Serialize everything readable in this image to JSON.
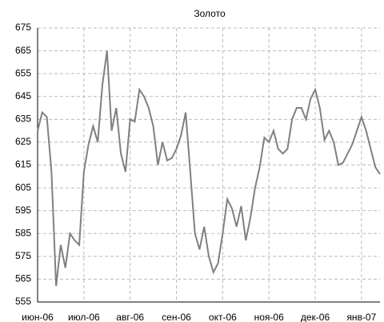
{
  "chart_data": {
    "type": "line",
    "title": "Золото",
    "categories": [
      "июн-06",
      null,
      null,
      null,
      null,
      null,
      null,
      null,
      null,
      null,
      "июл-06",
      null,
      null,
      null,
      null,
      null,
      null,
      null,
      null,
      null,
      "авг-06",
      null,
      null,
      null,
      null,
      null,
      null,
      null,
      null,
      null,
      "сен-06",
      null,
      null,
      null,
      null,
      null,
      null,
      null,
      null,
      null,
      "окт-06",
      null,
      null,
      null,
      null,
      null,
      null,
      null,
      null,
      null,
      "ноя-06",
      null,
      null,
      null,
      null,
      null,
      null,
      null,
      null,
      null,
      "дек-06",
      null,
      null,
      null,
      null,
      null,
      null,
      null,
      null,
      null,
      "янв-07",
      null,
      null,
      null,
      null
    ],
    "series": [
      {
        "name": "Золото",
        "color": "#808080",
        "values": [
          630,
          638,
          636,
          612,
          562,
          580,
          570,
          585,
          582,
          580,
          612,
          624,
          632,
          625,
          650,
          665,
          630,
          640,
          620,
          612,
          635,
          634,
          648,
          645,
          640,
          632,
          615,
          625,
          617,
          618,
          622,
          628,
          638,
          612,
          585,
          578,
          588,
          575,
          568,
          572,
          585,
          600,
          596,
          588,
          597,
          582,
          592,
          605,
          614,
          627,
          625,
          630,
          622,
          620,
          622,
          635,
          640,
          640,
          635,
          644,
          648,
          640,
          626,
          630,
          625,
          615,
          616,
          620,
          624,
          630,
          636,
          630,
          622,
          614,
          611
        ]
      }
    ],
    "ylim": [
      555,
      675
    ],
    "yticks": [
      555,
      565,
      575,
      585,
      595,
      605,
      615,
      625,
      635,
      645,
      655,
      665,
      675
    ],
    "grid": true
  }
}
